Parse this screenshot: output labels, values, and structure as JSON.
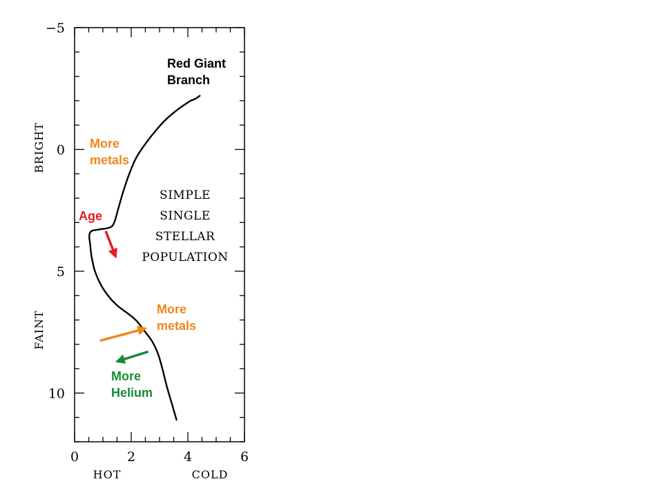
{
  "colors": {
    "metals": "#f0861c",
    "age": "#e31b23",
    "helium": "#158c34",
    "axis": "#000000",
    "curve": "#000000"
  },
  "chart_data": {
    "type": "line",
    "xlim": [
      0,
      6
    ],
    "ylim": [
      12,
      -5
    ],
    "x_ticks": [
      "0",
      "2",
      "4",
      "6"
    ],
    "y_ticks": [
      "−5",
      "0",
      "5",
      "10"
    ],
    "x_tick_values": [
      0,
      2,
      4,
      6
    ],
    "y_tick_values": [
      -5,
      0,
      5,
      10
    ],
    "x_minor_step": 0.5,
    "y_minor_step": 1,
    "xlabel_left": "HOT",
    "xlabel_right": "COLD",
    "ylabel_top": "BRIGHT",
    "ylabel_bottom": "FAINT",
    "center_text": [
      "SIMPLE",
      "SINGLE",
      "STELLAR",
      "POPULATION"
    ],
    "series": [
      {
        "points": [
          [
            3.6,
            11.1
          ],
          [
            3.45,
            10.5
          ],
          [
            3.25,
            9.7
          ],
          [
            3.1,
            9.0
          ],
          [
            2.95,
            8.4
          ],
          [
            2.75,
            7.9
          ],
          [
            2.5,
            7.5
          ],
          [
            2.2,
            7.05
          ],
          [
            1.9,
            6.75
          ],
          [
            1.55,
            6.45
          ],
          [
            1.25,
            6.1
          ],
          [
            0.95,
            5.6
          ],
          [
            0.72,
            5.0
          ],
          [
            0.6,
            4.4
          ],
          [
            0.55,
            3.9
          ],
          [
            0.52,
            3.55
          ],
          [
            0.6,
            3.35
          ],
          [
            0.9,
            3.28
          ],
          [
            1.25,
            3.2
          ],
          [
            1.4,
            3.0
          ],
          [
            1.55,
            2.4
          ],
          [
            1.7,
            1.8
          ],
          [
            1.9,
            1.1
          ],
          [
            2.15,
            0.4
          ],
          [
            2.45,
            -0.15
          ],
          [
            2.85,
            -0.75
          ],
          [
            3.2,
            -1.2
          ],
          [
            3.6,
            -1.6
          ],
          [
            3.9,
            -1.85
          ],
          [
            4.1,
            -2.0
          ],
          [
            4.25,
            -2.07
          ],
          [
            4.42,
            -2.2
          ]
        ]
      }
    ],
    "annotations": [
      {
        "text_lines": [
          "Red Giant",
          "Branch"
        ],
        "color": "#000000"
      },
      {
        "text_lines": [
          "More",
          "metals"
        ],
        "color": "#f0861c"
      },
      {
        "text_lines": [
          "Age"
        ],
        "color": "#e31b23"
      },
      {
        "text_lines": [
          "More",
          "metals"
        ],
        "color": "#f0861c"
      },
      {
        "text_lines": [
          "More",
          "Helium"
        ],
        "color": "#158c34"
      }
    ],
    "arrows": [
      {
        "name": "age-arrow",
        "from": [
          1.1,
          3.35
        ],
        "to": [
          1.45,
          4.4
        ],
        "color": "#e31b23"
      },
      {
        "name": "metals-arrow",
        "from": [
          0.9,
          7.85
        ],
        "to": [
          2.5,
          7.35
        ],
        "color": "#f0861c"
      },
      {
        "name": "helium-arrow",
        "from": [
          2.6,
          8.3
        ],
        "to": [
          1.5,
          8.7
        ],
        "color": "#158c34"
      }
    ]
  }
}
